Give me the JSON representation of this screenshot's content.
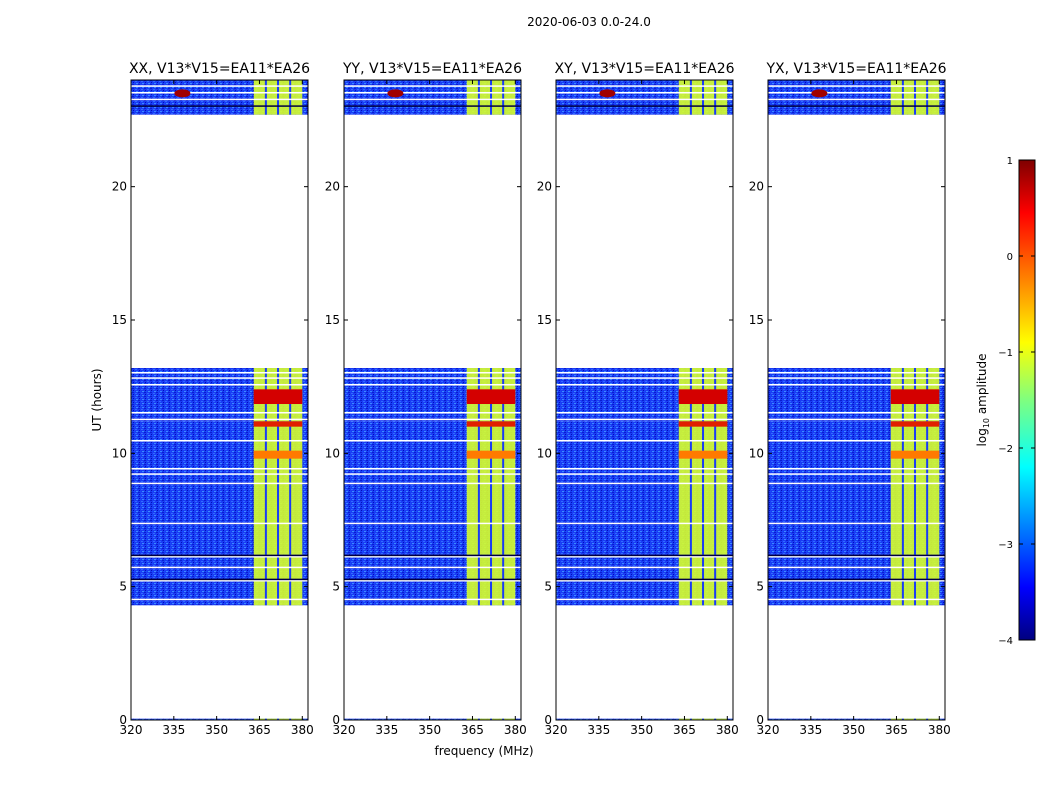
{
  "chart_data": {
    "type": "heatmap",
    "suptitle": "2020-06-03 0.0-24.0",
    "xlabel": "frequency (MHz)",
    "ylabel": "UT (hours)",
    "xlim": [
      320,
      382
    ],
    "ylim": [
      0,
      24
    ],
    "xticks": [
      320,
      335,
      350,
      365,
      380
    ],
    "yticks": [
      0,
      5,
      10,
      15,
      20
    ],
    "x_tick_labels": [
      "320",
      "335",
      "350",
      "365",
      "380"
    ],
    "y_tick_labels": [
      "0",
      "5",
      "10",
      "15",
      "20"
    ],
    "panels": [
      {
        "title": "XX, V13*V15=EA11*EA26",
        "polarization": "XX"
      },
      {
        "title": "YY, V13*V15=EA11*EA26",
        "polarization": "YY"
      },
      {
        "title": "XY, V13*V15=EA11*EA26",
        "polarization": "XY"
      },
      {
        "title": "YX, V13*V15=EA11*EA26",
        "polarization": "YX"
      }
    ],
    "data_segments_hours": [
      [
        0.0,
        0.05
      ],
      [
        4.3,
        6.2
      ],
      [
        6.2,
        9.6
      ],
      [
        9.6,
        11.2
      ],
      [
        11.2,
        13.2
      ],
      [
        22.7,
        24.0
      ]
    ],
    "rfi_band_mhz": [
      363,
      380
    ],
    "colorbar": {
      "label_main": "log",
      "label_sub": "10",
      "label_tail": " amplitude",
      "range": [
        -4,
        1
      ],
      "ticks": [
        1,
        0,
        -1,
        -2,
        -3,
        -4
      ],
      "tick_labels": [
        "1",
        "0",
        "−1",
        "−2",
        "−3",
        "−4"
      ]
    }
  }
}
